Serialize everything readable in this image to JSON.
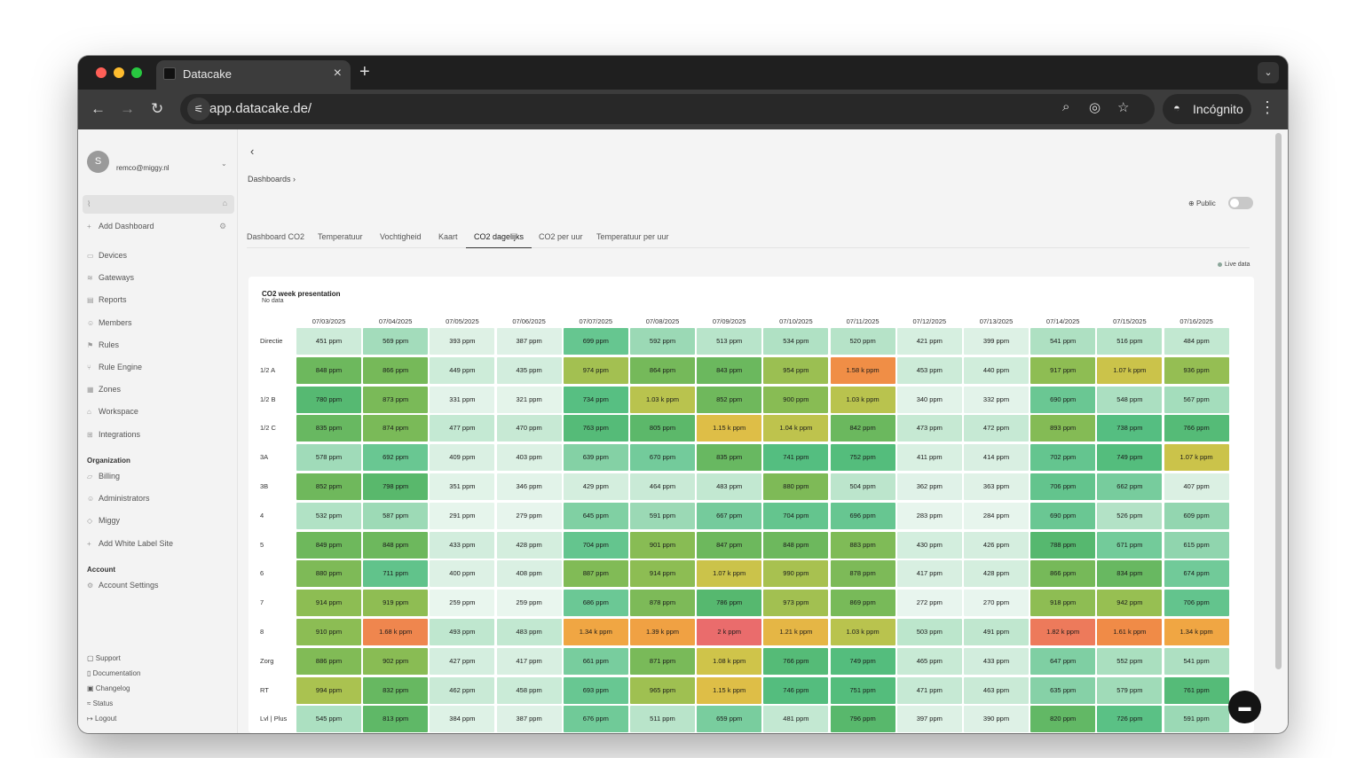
{
  "browser": {
    "tab_title": "Datacake",
    "url": "app.datacake.de/",
    "incognito_label": "Incógnito"
  },
  "sidebar": {
    "avatar_initial": "S",
    "email": "remco@miggy.nl",
    "add_dashboard": "Add Dashboard",
    "items": [
      {
        "label": "Devices",
        "icon": "devices-icon",
        "glyph": "▭"
      },
      {
        "label": "Gateways",
        "icon": "gateway-icon",
        "glyph": "≋"
      },
      {
        "label": "Reports",
        "icon": "reports-icon",
        "glyph": "▤"
      },
      {
        "label": "Members",
        "icon": "members-icon",
        "glyph": "☺"
      },
      {
        "label": "Rules",
        "icon": "rules-icon",
        "glyph": "⚑"
      },
      {
        "label": "Rule Engine",
        "icon": "rule-engine-icon",
        "glyph": "⑂"
      },
      {
        "label": "Zones",
        "icon": "zones-icon",
        "glyph": "▦"
      },
      {
        "label": "Workspace",
        "icon": "workspace-icon",
        "glyph": "⌂"
      },
      {
        "label": "Integrations",
        "icon": "integrations-icon",
        "glyph": "⊞"
      }
    ],
    "organization_heading": "Organization",
    "org_items": [
      {
        "label": "Billing",
        "icon": "billing-icon",
        "glyph": "▱"
      },
      {
        "label": "Administrators",
        "icon": "administrators-icon",
        "glyph": "☺"
      },
      {
        "label": "Miggy",
        "icon": "tag-icon",
        "glyph": "◇"
      },
      {
        "label": "Add White Label Site",
        "icon": "plus-icon",
        "glyph": "+"
      }
    ],
    "account_heading": "Account",
    "account_items": [
      {
        "label": "Account Settings",
        "icon": "settings-icon",
        "glyph": "⚙"
      }
    ],
    "footer": [
      {
        "label": "Support",
        "icon": "support-icon",
        "glyph": "▢"
      },
      {
        "label": "Documentation",
        "icon": "documentation-icon",
        "glyph": "▯"
      },
      {
        "label": "Changelog",
        "icon": "changelog-icon",
        "glyph": "▣"
      },
      {
        "label": "Status",
        "icon": "status-icon",
        "glyph": "≈"
      },
      {
        "label": "Logout",
        "icon": "logout-icon",
        "glyph": "↦"
      }
    ]
  },
  "main": {
    "breadcrumb": "Dashboards",
    "public_label": "Public",
    "live_label": "Live data",
    "tabs": [
      "Dashboard CO2",
      "Temperatuur",
      "Vochtigheid",
      "Kaart",
      "CO2 dagelijks",
      "CO2 per uur",
      "Temperatuur per uur"
    ],
    "active_tab": 4
  },
  "widget": {
    "title": "CO2 week presentation",
    "subtitle": "No data"
  },
  "chart_data": {
    "type": "heatmap",
    "title": "CO2 week presentation",
    "x": [
      "07/03/2025",
      "07/04/2025",
      "07/05/2025",
      "07/06/2025",
      "07/07/2025",
      "07/08/2025",
      "07/09/2025",
      "07/10/2025",
      "07/11/2025",
      "07/12/2025",
      "07/13/2025",
      "07/14/2025",
      "07/15/2025",
      "07/16/2025"
    ],
    "y": [
      "Directie",
      "1/2 A",
      "1/2 B",
      "1/2 C",
      "3A",
      "3B",
      "4",
      "5",
      "6",
      "7",
      "8",
      "Zorg",
      "RT",
      "Lvl | Plus"
    ],
    "unit": "ppm",
    "values": [
      [
        451,
        569,
        393,
        387,
        699,
        592,
        513,
        534,
        520,
        421,
        399,
        541,
        516,
        484
      ],
      [
        848,
        866,
        449,
        435,
        974,
        864,
        843,
        954,
        1580,
        453,
        440,
        917,
        1070,
        936
      ],
      [
        780,
        873,
        331,
        321,
        734,
        1030,
        852,
        900,
        1030,
        340,
        332,
        690,
        548,
        567
      ],
      [
        835,
        874,
        477,
        470,
        763,
        805,
        1150,
        1040,
        842,
        473,
        472,
        893,
        738,
        766
      ],
      [
        578,
        692,
        409,
        403,
        639,
        670,
        835,
        741,
        752,
        411,
        414,
        702,
        749,
        1070
      ],
      [
        852,
        798,
        351,
        346,
        429,
        464,
        483,
        880,
        504,
        362,
        363,
        706,
        662,
        407
      ],
      [
        532,
        587,
        291,
        279,
        645,
        591,
        667,
        704,
        696,
        283,
        284,
        690,
        526,
        609
      ],
      [
        849,
        848,
        433,
        428,
        704,
        901,
        847,
        848,
        883,
        430,
        426,
        788,
        671,
        615
      ],
      [
        880,
        711,
        400,
        408,
        887,
        914,
        1070,
        990,
        878,
        417,
        428,
        866,
        834,
        674
      ],
      [
        914,
        919,
        259,
        259,
        686,
        878,
        786,
        973,
        869,
        272,
        270,
        918,
        942,
        706
      ],
      [
        910,
        1680,
        493,
        483,
        1340,
        1390,
        2000,
        1210,
        1030,
        503,
        491,
        1820,
        1610,
        1340
      ],
      [
        886,
        902,
        427,
        417,
        661,
        871,
        1080,
        766,
        749,
        465,
        433,
        647,
        552,
        541
      ],
      [
        994,
        832,
        462,
        458,
        693,
        965,
        1150,
        746,
        751,
        471,
        463,
        635,
        579,
        761
      ],
      [
        545,
        813,
        384,
        387,
        676,
        511,
        659,
        481,
        796,
        397,
        390,
        820,
        726,
        591
      ]
    ]
  }
}
